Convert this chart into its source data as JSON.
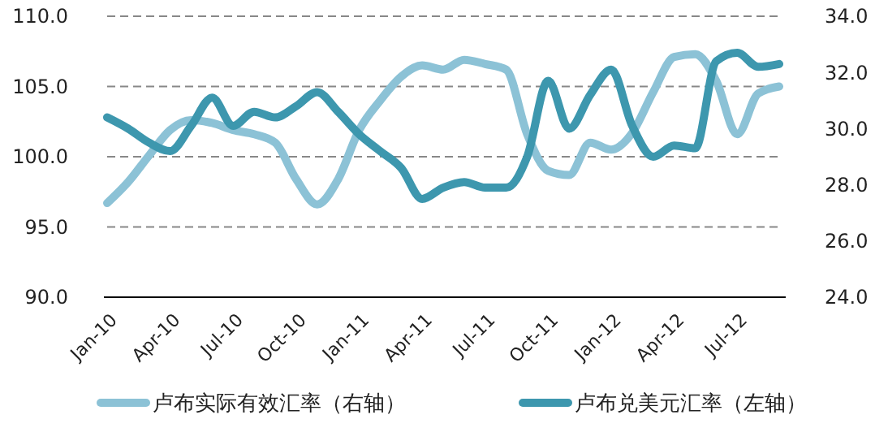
{
  "chart_data": {
    "type": "line",
    "categories": [
      "Jan-10",
      null,
      null,
      "Apr-10",
      null,
      null,
      "Jul-10",
      null,
      null,
      "Oct-10",
      null,
      null,
      "Jan-11",
      null,
      null,
      "Apr-11",
      null,
      null,
      "Jul-11",
      null,
      null,
      "Oct-11",
      null,
      null,
      "Jan-12",
      null,
      null,
      "Apr-12",
      null,
      null,
      "Jul-12",
      null,
      null
    ],
    "series": [
      {
        "name": "卢布实际有效汇率（右轴）",
        "color": "#8cc2d6",
        "values": [
          96.7,
          98.2,
          100.1,
          101.9,
          102.6,
          102.4,
          101.9,
          101.6,
          101.0,
          98.4,
          96.6,
          98.4,
          101.9,
          104.0,
          105.7,
          106.5,
          106.2,
          106.9,
          106.6,
          106.2,
          101.6,
          99.0,
          98.7,
          101.0,
          100.5,
          101.7,
          104.6,
          107.1,
          107.3,
          105.4,
          101.6,
          104.5,
          105.0
        ]
      },
      {
        "name": "卢布兑美元汇率（左轴）",
        "color": "#3d97ae",
        "axis": "y2",
        "values": [
          30.4,
          30.0,
          29.5,
          29.2,
          30.1,
          31.1,
          30.1,
          30.6,
          30.4,
          30.8,
          31.3,
          30.6,
          29.8,
          29.2,
          28.6,
          27.5,
          27.9,
          28.1,
          27.9,
          27.9,
          29.0,
          31.7,
          30.0,
          31.2,
          32.1,
          30.1,
          29.0,
          29.4,
          29.3,
          32.4,
          32.7,
          32.2,
          32.3
        ]
      }
    ],
    "ylim": [
      90,
      110
    ],
    "yticks": [
      {
        "value": 90,
        "label": "90.0"
      },
      {
        "value": 95,
        "label": "95.0"
      },
      {
        "value": 100,
        "label": "100.0"
      },
      {
        "value": 105,
        "label": "105.0"
      },
      {
        "value": 110,
        "label": "110.0"
      }
    ],
    "y2lim": [
      24,
      34
    ],
    "y2ticks": [
      {
        "value": 24,
        "label": "24.0"
      },
      {
        "value": 26,
        "label": "26.0"
      },
      {
        "value": 28,
        "label": "28.0"
      },
      {
        "value": 30,
        "label": "30.0"
      },
      {
        "value": 32,
        "label": "32.0"
      },
      {
        "value": 34,
        "label": "34.0"
      }
    ],
    "grid": "y",
    "legend": "bottom",
    "marker": "none",
    "line_style": "solid"
  }
}
